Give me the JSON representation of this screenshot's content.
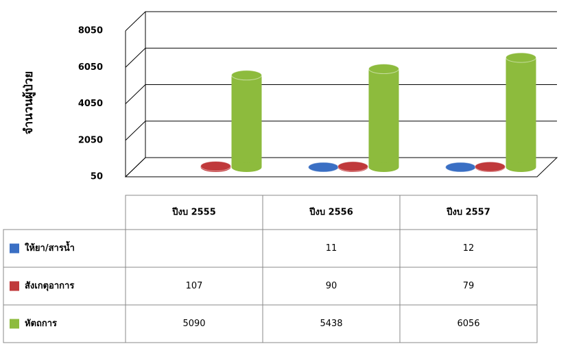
{
  "chart_data": {
    "type": "bar3d-table",
    "y_label": "จำนวนผู้ป่วย",
    "categories": [
      "ปีงบ 2555",
      "ปีงบ 2556",
      "ปีงบ 2557"
    ],
    "series": [
      {
        "name": "ให้ยา/สารน้ำ",
        "color": "#3a6fc4",
        "values": [
          null,
          11,
          12
        ]
      },
      {
        "name": "สังเกตุอาการ",
        "color": "#c0393b",
        "values": [
          107,
          90,
          79
        ]
      },
      {
        "name": "หัตถการ",
        "color": "#8dbb3d",
        "values": [
          5090,
          5438,
          6056
        ]
      }
    ],
    "ylim": [
      50,
      8050
    ],
    "yticks": [
      50,
      2050,
      4050,
      6050,
      8050
    ],
    "grid": true
  }
}
